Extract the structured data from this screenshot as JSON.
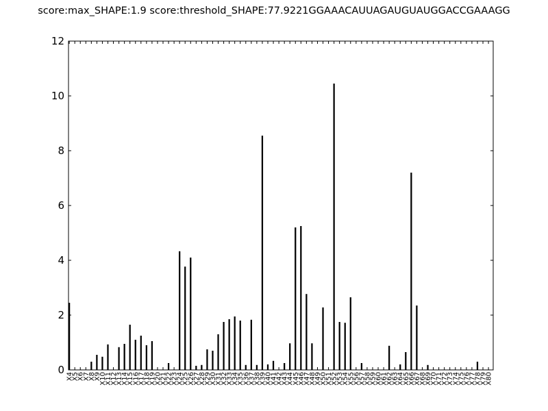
{
  "chart_data": {
    "type": "bar",
    "title": "score:max_SHAPE:1.9 score:threshold_SHAPE:77.9221GGAAACAUUAGAUGUAUGGACCGAAAGG",
    "xlabel": "",
    "ylabel": "",
    "ylim": [
      0,
      12
    ],
    "yticks": [
      "0",
      "2",
      "4",
      "6",
      "8",
      "10",
      "12"
    ],
    "grid": false,
    "categories": [
      "X4",
      "X5",
      "X6",
      "X7",
      "X8",
      "X9",
      "X10",
      "X11",
      "X12",
      "X13",
      "X14",
      "X15",
      "X16",
      "X17",
      "X18",
      "X19",
      "X20",
      "X21",
      "X22",
      "X23",
      "X24",
      "X25",
      "X26",
      "X27",
      "X28",
      "X29",
      "X30",
      "X31",
      "X32",
      "X33",
      "X34",
      "X35",
      "X36",
      "X37",
      "X38",
      "X39",
      "X40",
      "X41",
      "X42",
      "X43",
      "X44",
      "X45",
      "X46",
      "X47",
      "X48",
      "X49",
      "X50",
      "X51",
      "X52",
      "X53",
      "X54",
      "X55",
      "X56",
      "X57",
      "X58",
      "X59",
      "X60",
      "X61",
      "X62",
      "X63",
      "X64",
      "X65",
      "X66",
      "X67",
      "X68",
      "X69",
      "X70",
      "X71",
      "X72",
      "X73",
      "X74",
      "X75",
      "X76",
      "X77",
      "X78",
      "X79",
      "X80"
    ],
    "values": [
      2.45,
      0,
      0,
      0,
      0.3,
      0.55,
      0.48,
      0.93,
      0,
      0.83,
      0.95,
      1.65,
      1.1,
      1.25,
      0.9,
      1.05,
      0,
      0,
      0.25,
      0,
      4.33,
      3.77,
      4.1,
      0.15,
      0.18,
      0.75,
      0.7,
      1.3,
      1.75,
      1.85,
      1.95,
      1.8,
      0.18,
      1.83,
      0.18,
      8.55,
      0.2,
      0.33,
      0,
      0.25,
      0.97,
      5.2,
      5.25,
      2.77,
      0.97,
      0,
      2.28,
      0,
      10.45,
      1.75,
      1.72,
      2.65,
      0,
      0.25,
      0,
      0,
      0,
      0,
      0.88,
      0,
      0.2,
      0.65,
      7.2,
      2.35,
      0,
      0.18,
      0,
      0,
      0,
      0,
      0,
      0,
      0,
      0,
      0.3,
      0,
      0
    ]
  }
}
